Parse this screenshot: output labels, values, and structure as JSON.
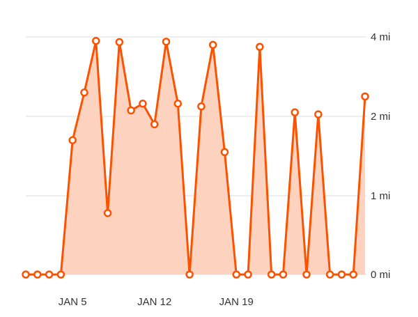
{
  "colors": {
    "line": "#FC5200",
    "fill": "#FDD3C0",
    "grid": "#DDDDDD",
    "label": "#333333",
    "marker_fill": "#FFFFFF"
  },
  "chart_data": {
    "type": "area",
    "x": [
      1,
      2,
      3,
      4,
      5,
      6,
      7,
      8,
      9,
      10,
      11,
      12,
      13,
      14,
      15,
      16,
      17,
      18,
      19,
      20,
      21,
      22,
      23,
      24,
      25,
      26,
      27,
      28,
      29,
      30
    ],
    "values": [
      0,
      0,
      0,
      0,
      1.7,
      2.6,
      3.9,
      0.78,
      3.87,
      2.15,
      2.32,
      1.9,
      3.88,
      2.32,
      0,
      2.25,
      3.8,
      1.55,
      0,
      0,
      3.75,
      0,
      0,
      2.1,
      0,
      2.05,
      0,
      0,
      0,
      2.5
    ],
    "y_ticks": [
      {
        "value": 0,
        "label": "0 mi"
      },
      {
        "value": 1,
        "label": "1 mi"
      },
      {
        "value": 2,
        "label": "2 mi"
      },
      {
        "value": 4,
        "label": "4 mi"
      }
    ],
    "x_ticks": [
      {
        "day": 5,
        "label": "JAN 5"
      },
      {
        "day": 12,
        "label": "JAN 12"
      },
      {
        "day": 19,
        "label": "JAN 19"
      }
    ],
    "ylim": [
      0,
      4
    ],
    "grid": true,
    "y_axis_side": "right"
  }
}
